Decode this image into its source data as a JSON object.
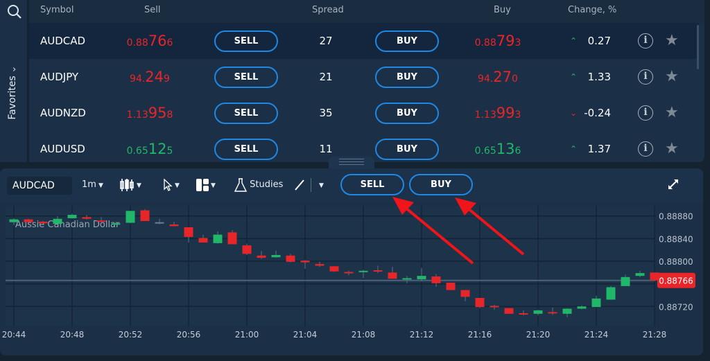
{
  "sidebar": {
    "favorites_label": "Favorites",
    "search_icon": "search-icon",
    "chevron_icon": "chevron-right-icon"
  },
  "table": {
    "headers": {
      "symbol": "Symbol",
      "sell": "Sell",
      "spread": "Spread",
      "buy": "Buy",
      "change": "Change, %"
    },
    "sell_label": "SELL",
    "buy_label": "BUY",
    "rows": [
      {
        "symbol": "AUDCAD",
        "sell": {
          "pre": "0.88",
          "big": "76",
          "post": "6",
          "color": "red"
        },
        "spread": "27",
        "buy": {
          "pre": "0.88",
          "big": "79",
          "post": "3",
          "color": "red"
        },
        "direction": "up",
        "change": "0.27",
        "selected": true
      },
      {
        "symbol": "AUDJPY",
        "sell": {
          "pre": "94.",
          "big": "24",
          "post": "9",
          "color": "red"
        },
        "spread": "21",
        "buy": {
          "pre": "94.",
          "big": "27",
          "post": "0",
          "color": "red"
        },
        "direction": "up",
        "change": "1.33",
        "selected": false
      },
      {
        "symbol": "AUDNZD",
        "sell": {
          "pre": "1.13",
          "big": "95",
          "post": "8",
          "color": "red"
        },
        "spread": "35",
        "buy": {
          "pre": "1.13",
          "big": "99",
          "post": "3",
          "color": "red"
        },
        "direction": "down",
        "change": "-0.24",
        "selected": false
      },
      {
        "symbol": "AUDUSD",
        "sell": {
          "pre": "0.65",
          "big": "12",
          "post": "5",
          "color": "green"
        },
        "spread": "11",
        "buy": {
          "pre": "0.65",
          "big": "13",
          "post": "6",
          "color": "green"
        },
        "direction": "up",
        "change": "1.37",
        "selected": false
      }
    ]
  },
  "chart_panel": {
    "symbol": "AUDCAD",
    "interval": "1m",
    "studies_label": "Studies",
    "sell_label": "SELL",
    "buy_label": "BUY",
    "icons": [
      "candlestick-icon",
      "cursor-icon",
      "layout-icon",
      "flask-icon",
      "line-draw-icon",
      "expand-icon"
    ]
  },
  "colors": {
    "up": "#20b769",
    "down": "#e8262a",
    "accent": "#1e88e5",
    "background": "#1b3047"
  },
  "chart_data": {
    "type": "candlestick",
    "title": "Aussie Canadian Dollar",
    "current_price": "0.88766",
    "y_ticks": [
      "0.88880",
      "0.88840",
      "0.88800",
      "0.88720"
    ],
    "x_ticks": [
      "20:44",
      "20:48",
      "20:52",
      "20:56",
      "21:00",
      "21:04",
      "21:08",
      "21:12",
      "21:16",
      "21:20",
      "21:24",
      "21:28"
    ],
    "ylim": [
      0.88686,
      0.88898
    ],
    "start_time": "20:44",
    "interval_minutes": 1,
    "grid": true,
    "candles": [
      [
        0.88869,
        0.88876,
        0.88864,
        0.88874
      ],
      [
        0.88874,
        0.88875,
        0.88869,
        0.88869
      ],
      [
        0.8887,
        0.88871,
        0.88866,
        0.88867
      ],
      [
        0.88866,
        0.8888,
        0.88866,
        0.88875
      ],
      [
        0.88876,
        0.88884,
        0.88875,
        0.88882
      ],
      [
        0.88878,
        0.88882,
        0.88874,
        0.88875
      ],
      [
        0.88872,
        0.88878,
        0.8887,
        0.8887
      ],
      [
        0.88866,
        0.8887,
        0.88865,
        0.88867
      ],
      [
        0.88868,
        0.88889,
        0.88867,
        0.88889
      ],
      [
        0.8889,
        0.88892,
        0.88871,
        0.88871
      ],
      [
        0.88869,
        0.88875,
        0.88865,
        0.88869
      ],
      [
        0.88865,
        0.8887,
        0.88862,
        0.88862
      ],
      [
        0.8886,
        0.8886,
        0.88833,
        0.88843
      ],
      [
        0.88841,
        0.88847,
        0.88833,
        0.88833
      ],
      [
        0.88832,
        0.88853,
        0.88831,
        0.88847
      ],
      [
        0.88851,
        0.88855,
        0.8883,
        0.8883
      ],
      [
        0.88828,
        0.88831,
        0.88811,
        0.88813
      ],
      [
        0.8881,
        0.88818,
        0.88804,
        0.88806
      ],
      [
        0.88807,
        0.88819,
        0.88806,
        0.88811
      ],
      [
        0.8881,
        0.88813,
        0.88798,
        0.88799
      ],
      [
        0.88801,
        0.88802,
        0.88787,
        0.88798
      ],
      [
        0.88795,
        0.88799,
        0.8879,
        0.88792
      ],
      [
        0.88791,
        0.88791,
        0.88781,
        0.88782
      ],
      [
        0.88781,
        0.88783,
        0.88775,
        0.8878
      ],
      [
        0.88781,
        0.88785,
        0.8877,
        0.88783
      ],
      [
        0.88784,
        0.88792,
        0.88779,
        0.88782
      ],
      [
        0.8878,
        0.8879,
        0.88769,
        0.88769
      ],
      [
        0.88768,
        0.88774,
        0.88761,
        0.8877
      ],
      [
        0.88768,
        0.88788,
        0.88764,
        0.88774
      ],
      [
        0.88773,
        0.88777,
        0.88755,
        0.88761
      ],
      [
        0.88762,
        0.88762,
        0.88749,
        0.88749
      ],
      [
        0.88749,
        0.88749,
        0.88729,
        0.88737
      ],
      [
        0.88735,
        0.88735,
        0.88717,
        0.88719
      ],
      [
        0.88721,
        0.88723,
        0.88714,
        0.88719
      ],
      [
        0.88717,
        0.88717,
        0.88707,
        0.88707
      ],
      [
        0.88708,
        0.88713,
        0.88704,
        0.88707
      ],
      [
        0.88707,
        0.88714,
        0.88704,
        0.88713
      ],
      [
        0.8871,
        0.88718,
        0.88705,
        0.88708
      ],
      [
        0.88707,
        0.88717,
        0.88701,
        0.88716
      ],
      [
        0.88716,
        0.88722,
        0.88715,
        0.8872
      ],
      [
        0.88719,
        0.88739,
        0.88719,
        0.88734
      ],
      [
        0.88732,
        0.88756,
        0.88732,
        0.88754
      ],
      [
        0.88756,
        0.88776,
        0.88756,
        0.88772
      ],
      [
        0.88774,
        0.88783,
        0.88772,
        0.88779
      ],
      [
        0.8878,
        0.8878,
        0.88766,
        0.88766
      ]
    ],
    "candle_format": [
      "open",
      "high",
      "low",
      "close"
    ]
  }
}
